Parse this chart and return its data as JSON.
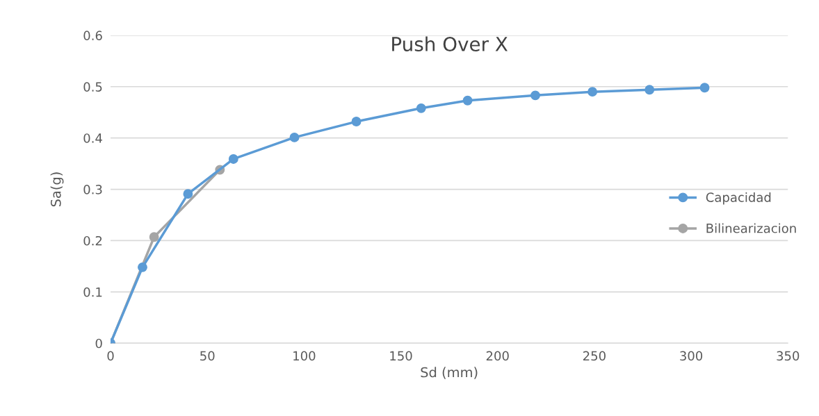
{
  "chart_data": {
    "type": "line",
    "title": "Push Over X",
    "xlabel": "Sd (mm)",
    "ylabel": "Sa(g)",
    "xlim": [
      0,
      350
    ],
    "xticks": [
      0,
      50,
      100,
      150,
      200,
      250,
      300,
      350
    ],
    "ylim": [
      0,
      0.6
    ],
    "yticks": [
      0,
      0.1,
      0.2,
      0.3,
      0.4,
      0.5,
      0.6
    ],
    "grid": "y",
    "legend": "right",
    "marker": "circle",
    "line_style": "solid",
    "series": [
      {
        "name": "Capacidad",
        "color": "#5b9bd5",
        "x": [
          0,
          16.5,
          40,
          63.5,
          95,
          127,
          160.5,
          184.5,
          219.5,
          249,
          278.5,
          307
        ],
        "values": [
          0,
          0.148,
          0.291,
          0.359,
          0.401,
          0.432,
          0.458,
          0.473,
          0.483,
          0.49,
          0.494,
          0.498
        ]
      },
      {
        "name": "Bilinearizacion",
        "color": "#a5a5a5",
        "x": [
          0,
          22.5,
          56.5
        ],
        "values": [
          0,
          0.207,
          0.338
        ]
      }
    ]
  }
}
